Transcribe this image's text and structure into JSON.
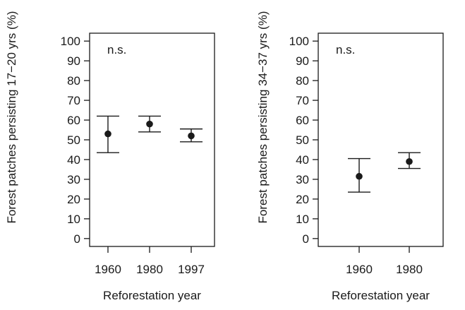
{
  "chart_data": [
    {
      "type": "scatter",
      "subtype": "point-with-error-bars",
      "title": "",
      "xlabel": "Reforestation year",
      "ylabel": "Forest patches persisting 17−20 yrs (%)",
      "annotation": "n.s.",
      "categories": [
        "1960",
        "1980",
        "1997"
      ],
      "values": [
        53,
        58,
        52
      ],
      "error_low": [
        43.5,
        54,
        49
      ],
      "error_high": [
        62,
        62,
        55.5
      ],
      "ylim": [
        -4,
        104
      ],
      "yticks": [
        0,
        10,
        20,
        30,
        40,
        50,
        60,
        70,
        80,
        90,
        100
      ],
      "ytick_labels": [
        "0",
        "10",
        "20",
        "30",
        "40",
        "50",
        "60",
        "70",
        "80",
        "90",
        "100"
      ],
      "grid": false,
      "legend": "none"
    },
    {
      "type": "scatter",
      "subtype": "point-with-error-bars",
      "title": "",
      "xlabel": "Reforestation year",
      "ylabel": "Forest patches persisting 34−37 yrs (%)",
      "annotation": "n.s.",
      "categories": [
        "1960",
        "1980"
      ],
      "values": [
        31.5,
        39
      ],
      "error_low": [
        23.5,
        35.5
      ],
      "error_high": [
        40.5,
        43.5
      ],
      "ylim": [
        -4,
        104
      ],
      "yticks": [
        0,
        10,
        20,
        30,
        40,
        50,
        60,
        70,
        80,
        90,
        100
      ],
      "ytick_labels": [
        "0",
        "10",
        "20",
        "30",
        "40",
        "50",
        "60",
        "70",
        "80",
        "90",
        "100"
      ],
      "grid": false,
      "legend": "none"
    }
  ],
  "style": {
    "ink": "#1a1a1a"
  }
}
